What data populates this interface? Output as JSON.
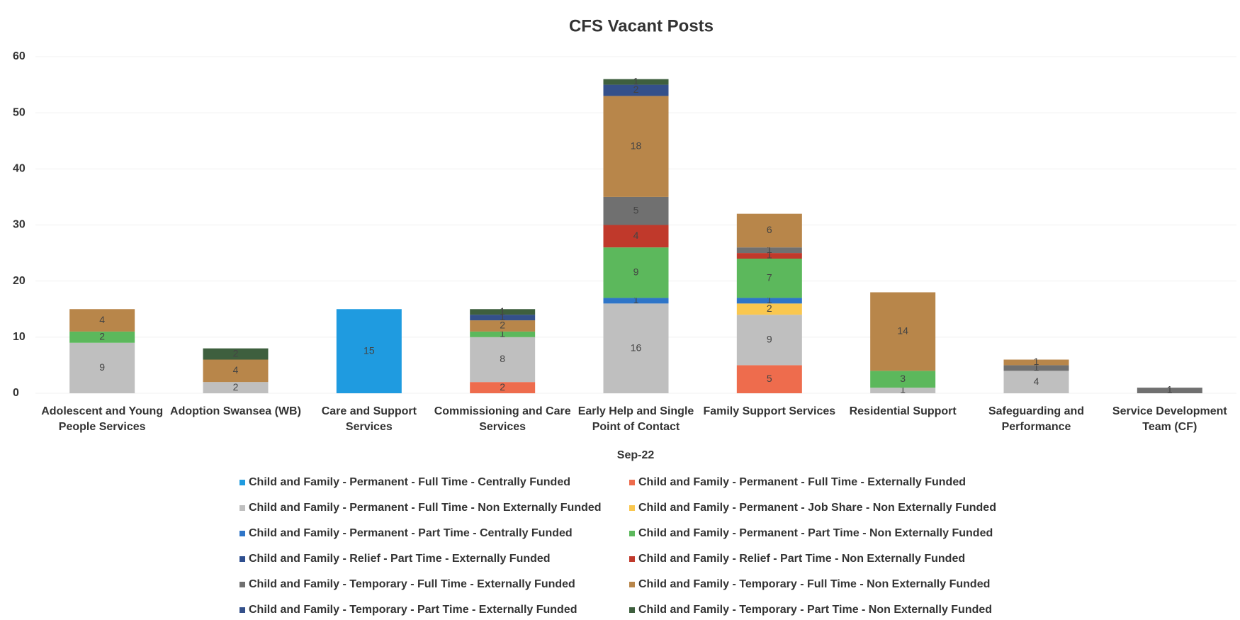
{
  "chart_data": {
    "type": "stacked_bar",
    "title": "CFS Vacant Posts",
    "x_label": "Sep-22",
    "categories": [
      "Adolescent and Young People Services",
      "Adoption Swansea (WB)",
      "Care and Support Services",
      "Commissioning and Care Services",
      "Early Help and Single Point of Contact",
      "Family Support Services",
      "Residential Support",
      "Safeguarding and Performance",
      "Service Development Team (CF)"
    ],
    "series": [
      {
        "name": "Child and Family - Permanent - Full Time - Centrally Funded",
        "color": "#1f9be0",
        "values": [
          null,
          null,
          15,
          null,
          null,
          null,
          null,
          null,
          null
        ]
      },
      {
        "name": "Child and Family - Permanent - Full Time - Externally Funded",
        "color": "#ee6c4d",
        "values": [
          null,
          null,
          null,
          2,
          null,
          5,
          null,
          null,
          null
        ]
      },
      {
        "name": "Child and Family - Permanent - Full Time - Non Externally Funded",
        "color": "#bfbfbf",
        "values": [
          9,
          2,
          null,
          8,
          16,
          9,
          1,
          4,
          null
        ]
      },
      {
        "name": "Child and Family - Permanent - Job Share - Non Externally Funded",
        "color": "#f9c74f",
        "values": [
          null,
          null,
          null,
          null,
          null,
          2,
          null,
          null,
          null
        ]
      },
      {
        "name": "Child and Family - Permanent - Part Time - Centrally Funded",
        "color": "#2e75c8",
        "values": [
          null,
          null,
          null,
          null,
          1,
          1,
          null,
          null,
          null
        ]
      },
      {
        "name": "Child and Family - Permanent - Part Time - Non Externally Funded",
        "color": "#5cb85c",
        "values": [
          2,
          null,
          null,
          1,
          9,
          7,
          3,
          null,
          null
        ]
      },
      {
        "name": "Child and Family - Relief - Part Time - Externally Funded",
        "color": "#2f4f8f",
        "values": [
          null,
          null,
          null,
          null,
          null,
          null,
          null,
          null,
          null
        ]
      },
      {
        "name": "Child and Family - Relief - Part Time - Non Externally Funded",
        "color": "#c0392b",
        "values": [
          null,
          null,
          null,
          null,
          4,
          1,
          null,
          null,
          null
        ]
      },
      {
        "name": "Child and Family - Temporary - Full Time - Externally Funded",
        "color": "#707070",
        "values": [
          null,
          null,
          null,
          null,
          5,
          1,
          null,
          1,
          1
        ]
      },
      {
        "name": "Child and Family - Temporary - Full Time - Non Externally Funded",
        "color": "#b8864a",
        "values": [
          4,
          4,
          null,
          2,
          18,
          6,
          14,
          1,
          null
        ]
      },
      {
        "name": "Child and Family - Temporary - Part Time - Externally Funded",
        "color": "#34508a",
        "values": [
          null,
          null,
          null,
          1,
          2,
          null,
          null,
          null,
          null
        ]
      },
      {
        "name": "Child and Family - Temporary - Part Time - Non Externally Funded",
        "color": "#3e5f3e",
        "values": [
          null,
          2,
          null,
          1,
          1,
          null,
          null,
          null,
          null
        ]
      }
    ],
    "ylim": [
      0,
      60
    ],
    "yticks": [
      0,
      10,
      20,
      30,
      40,
      50,
      60
    ],
    "grid": true
  }
}
